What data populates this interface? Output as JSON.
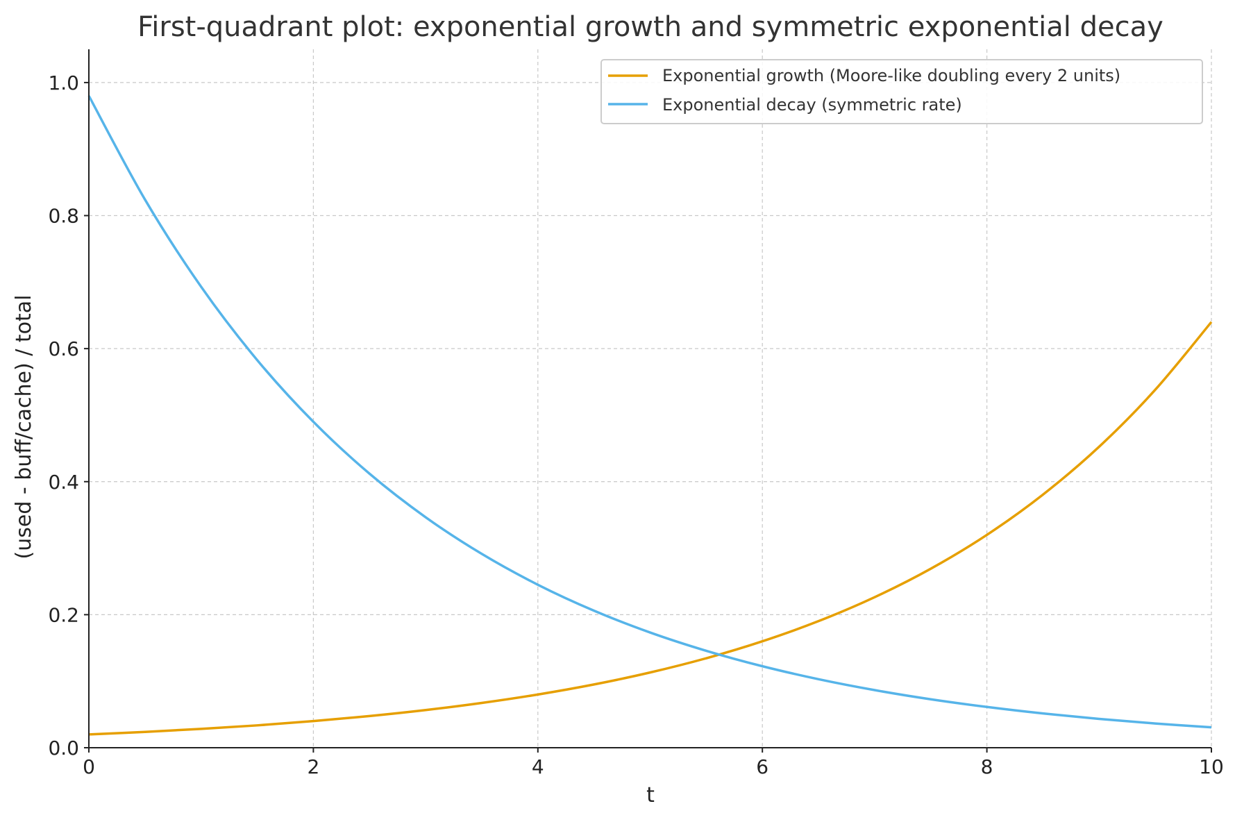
{
  "chart_data": {
    "type": "line",
    "title": "First-quadrant plot: exponential growth and symmetric exponential decay",
    "xlabel": "t",
    "ylabel": "(used - buff/cache) / total",
    "xlim": [
      0,
      10
    ],
    "ylim": [
      0,
      1.05
    ],
    "x_ticks": [
      0,
      2,
      4,
      6,
      8,
      10
    ],
    "x_tick_labels": [
      "0",
      "2",
      "4",
      "6",
      "8",
      "10"
    ],
    "y_ticks": [
      0,
      0.2,
      0.4,
      0.6,
      0.8,
      1.0
    ],
    "y_tick_labels": [
      "0.0",
      "0.2",
      "0.4",
      "0.6",
      "0.8",
      "1.0"
    ],
    "grid": true,
    "legend_position": "top-right",
    "x": [
      0,
      0.5,
      1,
      1.5,
      2,
      2.5,
      3,
      3.5,
      4,
      4.5,
      5,
      5.5,
      6,
      6.5,
      7,
      7.5,
      8,
      8.5,
      9,
      9.5,
      10
    ],
    "series": [
      {
        "name": "Exponential growth (Moore-like doubling every 2 units)",
        "color": "#E69F00",
        "values": [
          0.02,
          0.0238,
          0.0283,
          0.0336,
          0.04,
          0.0476,
          0.0566,
          0.0673,
          0.08,
          0.0951,
          0.1131,
          0.1345,
          0.16,
          0.1903,
          0.2263,
          0.2691,
          0.32,
          0.3806,
          0.4525,
          0.5382,
          0.64
        ]
      },
      {
        "name": "Exponential decay (symmetric rate)",
        "color": "#56B4E9",
        "values": [
          0.98,
          0.8241,
          0.693,
          0.5827,
          0.49,
          0.412,
          0.3465,
          0.2914,
          0.245,
          0.206,
          0.1732,
          0.1457,
          0.1225,
          0.103,
          0.0866,
          0.0728,
          0.0613,
          0.0515,
          0.0433,
          0.0364,
          0.0306
        ]
      }
    ]
  }
}
